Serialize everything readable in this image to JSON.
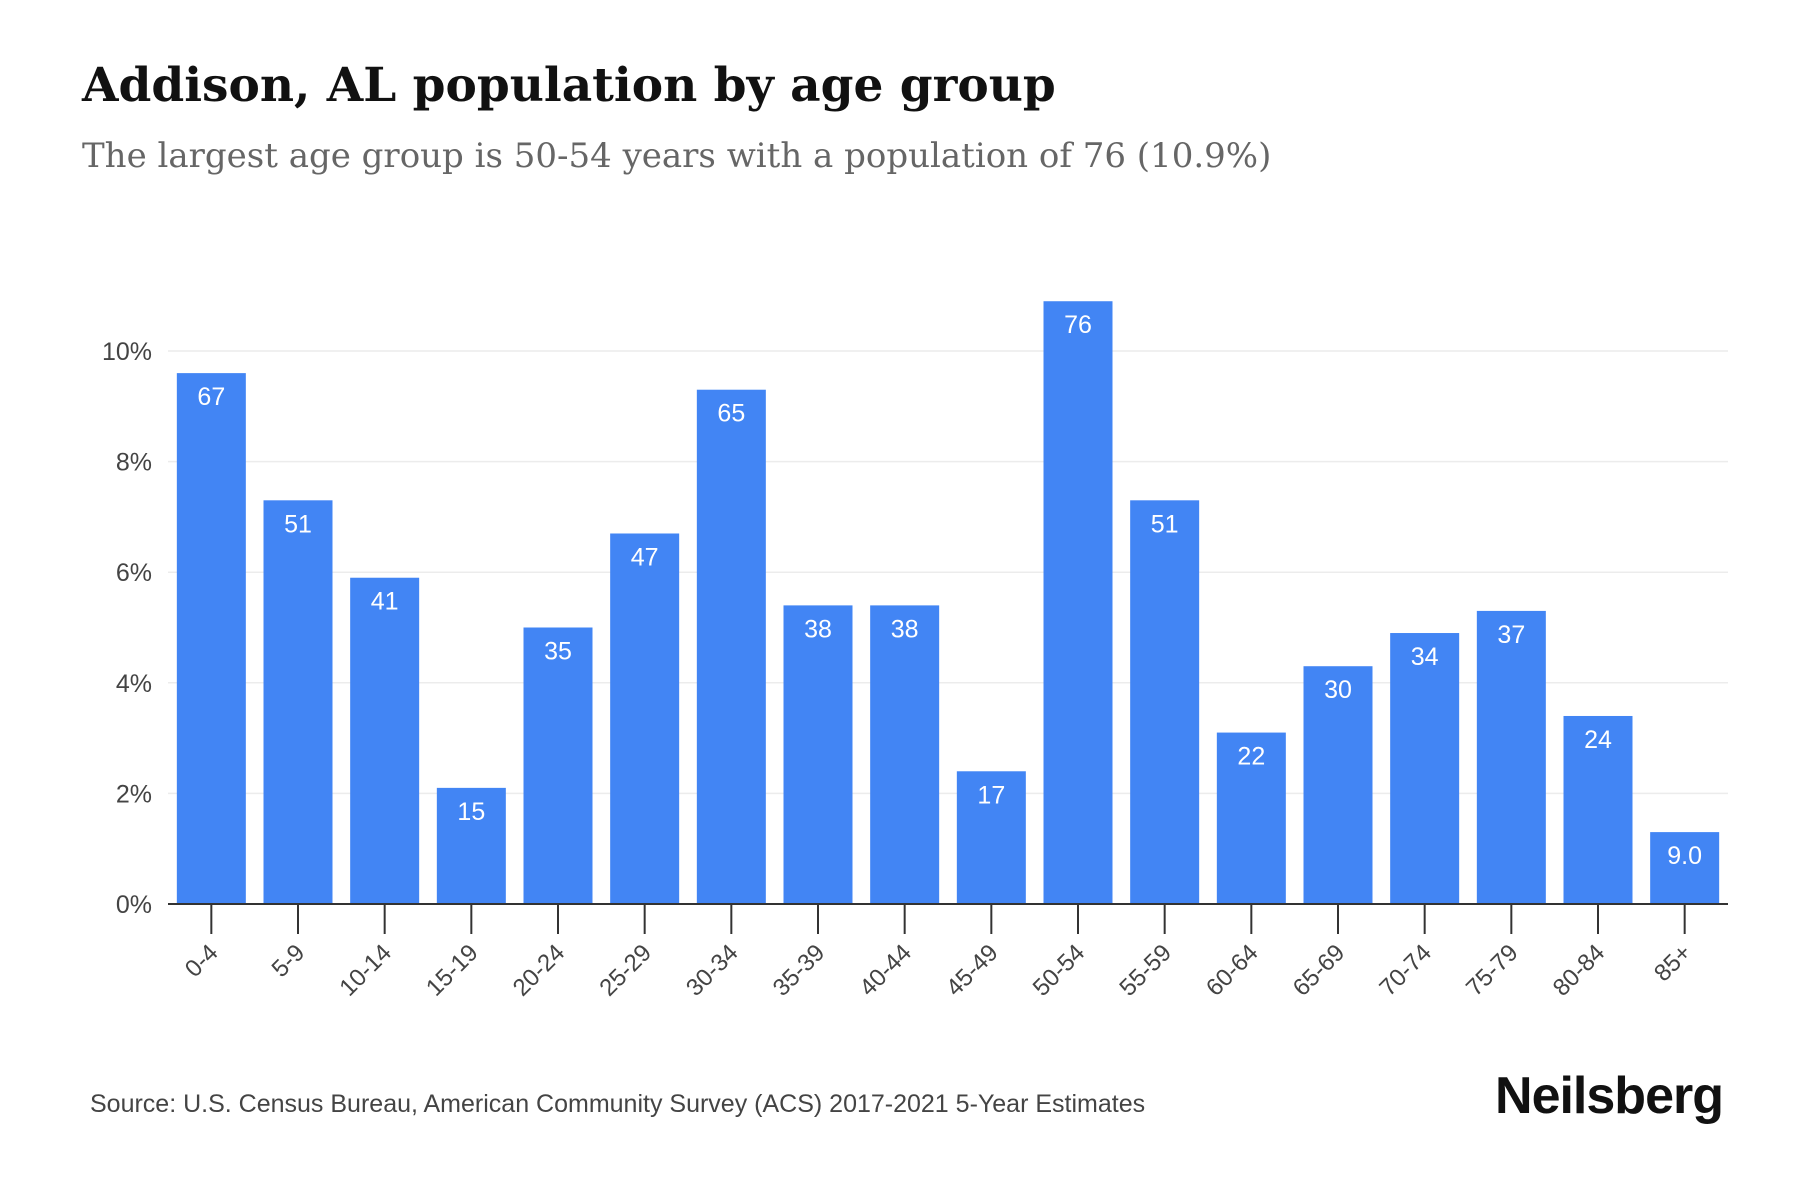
{
  "title": "Addison, AL population by age group",
  "subtitle": "The largest age group is 50-54 years with a population of 76 (10.9%)",
  "source": "Source: U.S. Census Bureau, American Community Survey (ACS) 2017-2021 5-Year Estimates",
  "brand": "Neilsberg",
  "colors": {
    "bar": "#4285f4",
    "bar_label": "#ffffff",
    "grid": "#ececec",
    "axis": "#333333",
    "tick_text": "#444444"
  },
  "chart_data": {
    "type": "bar",
    "title": "Addison, AL population by age group",
    "subtitle": "The largest age group is 50-54 years with a population of 76 (10.9%)",
    "categories": [
      "0-4",
      "5-9",
      "10-14",
      "15-19",
      "20-24",
      "25-29",
      "30-34",
      "35-39",
      "40-44",
      "45-49",
      "50-54",
      "55-59",
      "60-64",
      "65-69",
      "70-74",
      "75-79",
      "80-84",
      "85+"
    ],
    "values": [
      9.6,
      7.3,
      5.9,
      2.1,
      5.0,
      6.7,
      9.3,
      5.4,
      5.4,
      2.4,
      10.9,
      7.3,
      3.1,
      4.3,
      4.9,
      5.3,
      3.4,
      1.3
    ],
    "data_labels": [
      "67",
      "51",
      "41",
      "15",
      "35",
      "47",
      "65",
      "38",
      "38",
      "17",
      "76",
      "51",
      "22",
      "30",
      "34",
      "37",
      "24",
      "9.0"
    ],
    "y_ticks": [
      "0%",
      "2%",
      "4%",
      "6%",
      "8%",
      "10%"
    ],
    "y_tick_values": [
      0,
      2,
      4,
      6,
      8,
      10
    ],
    "xlabel": "",
    "ylabel": "",
    "ylim": [
      0,
      11
    ],
    "y_unit": "%",
    "grid": true,
    "legend": "none"
  }
}
